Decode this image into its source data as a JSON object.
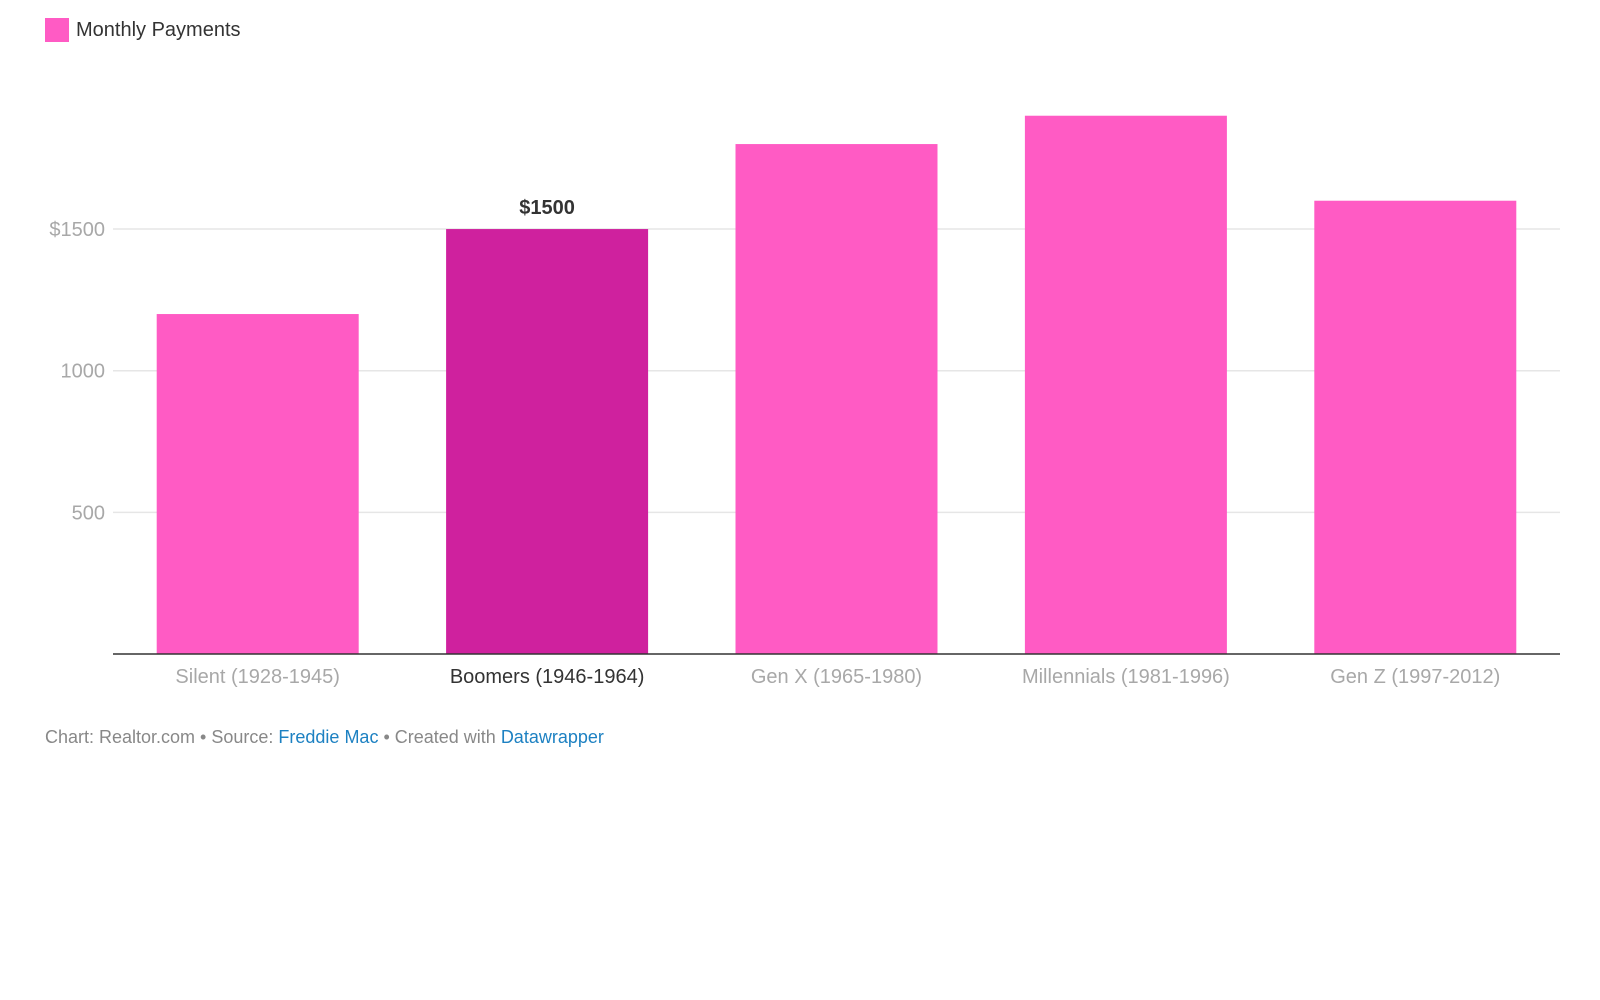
{
  "legend": {
    "label": "Monthly Payments",
    "color": "#ff5bc4"
  },
  "chart_data": {
    "type": "bar",
    "categories": [
      "Silent (1928-1945)",
      "Boomers (1946-1964)",
      "Gen X (1965-1980)",
      "Millennials (1981-1996)",
      "Gen Z (1997-2012)"
    ],
    "series": [
      {
        "name": "Monthly Payments",
        "values": [
          1200,
          1500,
          1800,
          1900,
          1600
        ]
      }
    ],
    "highlight_index": 1,
    "highlight_value_label": "$1500",
    "y_ticks": [
      {
        "value": 500,
        "label": "500"
      },
      {
        "value": 1000,
        "label": "1000"
      },
      {
        "value": 1500,
        "label": "$1500"
      }
    ],
    "ylim": [
      0,
      2000
    ],
    "grid": true,
    "legend_position": "top-left",
    "colors": {
      "bar": "#ff5bc4",
      "highlight": "#cf219e",
      "grid": "#e6e6e6",
      "axis": "#333333"
    }
  },
  "footer": {
    "chart_prefix": "Chart: Realtor.com • Source: ",
    "source_link": "Freddie Mac",
    "created_text": " • Created with ",
    "tool_link": "Datawrapper"
  }
}
